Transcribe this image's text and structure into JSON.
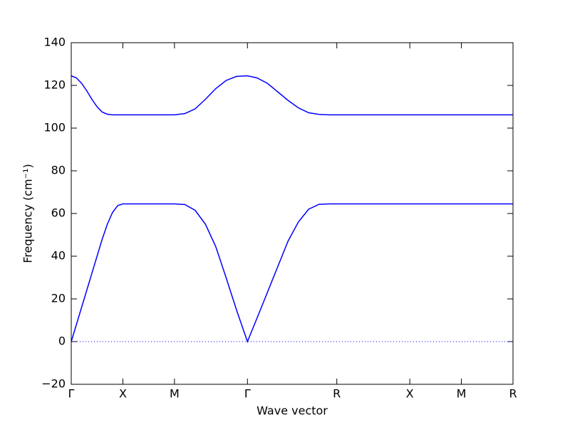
{
  "chart_data": {
    "type": "line",
    "xlabel": "Wave vector",
    "ylabel": "Frequency (cm⁻¹)",
    "x": [
      0,
      0.05,
      0.1,
      0.15,
      0.2,
      0.25,
      0.3,
      0.35,
      0.4,
      0.45,
      0.5,
      0.75,
      1.0,
      1.1,
      1.2,
      1.3,
      1.4,
      1.5,
      1.6,
      1.707,
      1.8,
      1.9,
      2.0,
      2.1,
      2.2,
      2.3,
      2.4,
      2.5,
      2.573,
      3.28,
      3.78,
      4.28
    ],
    "series": [
      {
        "color": "#0000ff",
        "values": [
          0,
          8,
          16,
          24,
          32,
          40,
          48,
          55,
          60.5,
          63.7,
          64.5,
          64.5,
          64.5,
          64.2,
          61.5,
          55,
          44.5,
          30,
          15,
          0,
          11,
          23,
          35,
          47,
          56,
          62,
          64.3,
          64.5,
          64.5,
          64.5,
          64.5,
          64.5
        ]
      },
      {
        "color": "#0000ff",
        "values": [
          124.5,
          123.5,
          121,
          117.5,
          113.5,
          110,
          107.5,
          106.5,
          106.2,
          106.2,
          106.2,
          106.2,
          106.2,
          106.8,
          109,
          113.5,
          118.5,
          122.3,
          124.2,
          124.5,
          123.5,
          121,
          117,
          113,
          109.5,
          107.2,
          106.4,
          106.2,
          106.2,
          106.2,
          106.2,
          106.2
        ]
      }
    ],
    "hline": 0,
    "xlim": [
      0,
      4.28
    ],
    "ylim": [
      -20,
      140
    ],
    "xticks": [
      {
        "value": 0,
        "label": "Γ"
      },
      {
        "value": 0.5,
        "label": "X"
      },
      {
        "value": 1.0,
        "label": "M"
      },
      {
        "value": 1.707,
        "label": "Γ"
      },
      {
        "value": 2.573,
        "label": "R"
      },
      {
        "value": 3.28,
        "label": "X"
      },
      {
        "value": 3.78,
        "label": "M"
      },
      {
        "value": 4.28,
        "label": "R"
      }
    ],
    "yticks": [
      {
        "value": -20,
        "label": "−20"
      },
      0,
      20,
      40,
      60,
      80,
      100,
      120,
      140
    ]
  }
}
